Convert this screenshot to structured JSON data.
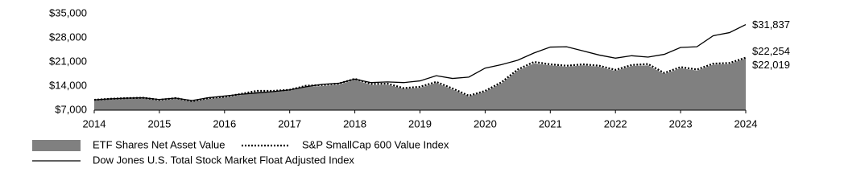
{
  "chart_data": {
    "type": "line",
    "x": [
      2014,
      2014.25,
      2014.5,
      2014.75,
      2015,
      2015.25,
      2015.5,
      2015.75,
      2016,
      2016.25,
      2016.5,
      2016.75,
      2017,
      2017.25,
      2017.5,
      2017.75,
      2018,
      2018.25,
      2018.5,
      2018.75,
      2019,
      2019.25,
      2019.5,
      2019.75,
      2020,
      2020.25,
      2020.5,
      2020.75,
      2021,
      2021.25,
      2021.5,
      2021.75,
      2022,
      2022.25,
      2022.5,
      2022.75,
      2023,
      2023.25,
      2023.5,
      2023.75,
      2024
    ],
    "series": [
      {
        "name": "ETF Shares Net Asset Value",
        "color": "#808080",
        "style": "area",
        "values": [
          10000,
          10200,
          10400,
          10400,
          9800,
          10300,
          9500,
          10300,
          10700,
          11400,
          12300,
          12400,
          12700,
          13800,
          14000,
          14400,
          15800,
          14300,
          14400,
          13200,
          13500,
          14900,
          13000,
          11000,
          12400,
          14800,
          18500,
          20600,
          20000,
          19600,
          20000,
          19600,
          18400,
          19800,
          20000,
          17500,
          19200,
          18500,
          20200,
          20400,
          22019
        ],
        "value_labels": [
          null,
          null,
          null,
          null,
          null,
          null,
          null,
          null,
          null,
          null,
          null,
          null,
          null,
          null,
          null,
          null,
          null,
          null,
          null,
          null,
          null,
          null,
          null,
          null,
          null,
          null,
          null,
          null,
          null,
          null,
          null,
          null,
          null,
          null,
          null,
          null,
          null,
          null,
          null,
          null,
          "$22,019"
        ]
      },
      {
        "name": "S&P SmallCap 600 Value Index",
        "color": "#000000",
        "style": "dotted",
        "values": [
          10000,
          10300,
          10500,
          10600,
          10000,
          10500,
          9600,
          10500,
          10900,
          11700,
          12600,
          12600,
          12900,
          14100,
          14300,
          14700,
          16100,
          14600,
          14700,
          13400,
          13800,
          15200,
          13300,
          11200,
          12600,
          15100,
          18800,
          21000,
          20300,
          19900,
          20300,
          19900,
          18700,
          20100,
          20400,
          17800,
          19500,
          18800,
          20500,
          20700,
          22254
        ],
        "value_labels": [
          null,
          null,
          null,
          null,
          null,
          null,
          null,
          null,
          null,
          null,
          null,
          null,
          null,
          null,
          null,
          null,
          null,
          null,
          null,
          null,
          null,
          null,
          null,
          null,
          null,
          null,
          null,
          null,
          null,
          null,
          null,
          null,
          null,
          null,
          null,
          null,
          null,
          null,
          null,
          null,
          "$22,254"
        ]
      },
      {
        "name": "Dow Jones U.S. Total Stock Market Float Adjusted Index",
        "color": "#000000",
        "style": "solid",
        "values": [
          10000,
          10300,
          10500,
          10600,
          10100,
          10500,
          9800,
          10600,
          11100,
          11600,
          12000,
          12400,
          12900,
          13800,
          14500,
          14800,
          16000,
          15000,
          15200,
          15000,
          15500,
          17000,
          16200,
          16600,
          19200,
          20200,
          21500,
          23600,
          25300,
          25400,
          24200,
          23000,
          22100,
          22800,
          22400,
          23200,
          25200,
          25400,
          28600,
          29500,
          31837
        ],
        "value_labels": [
          null,
          null,
          null,
          null,
          null,
          null,
          null,
          null,
          null,
          null,
          null,
          null,
          null,
          null,
          null,
          null,
          null,
          null,
          null,
          null,
          null,
          null,
          null,
          null,
          null,
          null,
          null,
          null,
          null,
          null,
          null,
          null,
          null,
          null,
          null,
          null,
          null,
          null,
          null,
          null,
          "$31,837"
        ]
      }
    ],
    "xlim": [
      2014,
      2024
    ],
    "xticks": [
      2014,
      2015,
      2016,
      2017,
      2018,
      2019,
      2020,
      2021,
      2022,
      2023,
      2024
    ],
    "ylim": [
      7000,
      35000
    ],
    "yticks": [
      {
        "value": 7000,
        "label": "$7,000"
      },
      {
        "value": 14000,
        "label": "$14,000"
      },
      {
        "value": 21000,
        "label": "$21,000"
      },
      {
        "value": 28000,
        "label": "$28,000"
      },
      {
        "value": 35000,
        "label": "$35,000"
      }
    ],
    "grid": false,
    "legend": "bottom"
  }
}
